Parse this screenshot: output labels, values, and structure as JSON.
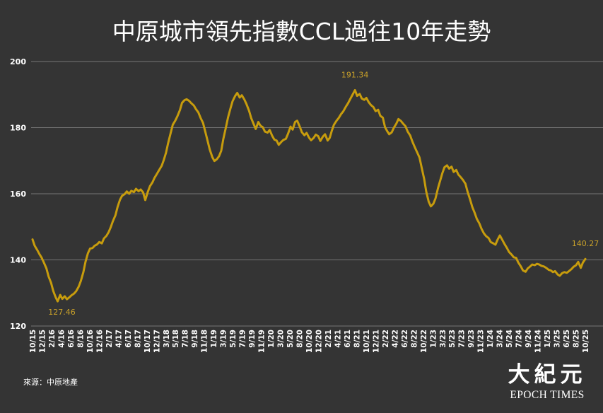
{
  "source": "來源：中原地產",
  "logo": {
    "chinese": "大紀元",
    "english": "EPOCH TIMES"
  },
  "colors": {
    "background": "#343434",
    "text": "#ffffff",
    "grid": "#767676",
    "line": "#c79c0d",
    "annotation": "#c9a12a"
  },
  "chart_data": {
    "type": "line",
    "title": "中原城市領先指數CCL過往10年走勢",
    "ylim": [
      120,
      200
    ],
    "yticks": [
      120,
      140,
      160,
      180,
      200
    ],
    "xlim": [
      "2015-10-01",
      "2025-10-01"
    ],
    "grid": true,
    "xtick_labels": [
      "10/15",
      "12/15",
      "2/16",
      "4/16",
      "6/16",
      "8/16",
      "10/16",
      "12/16",
      "2/17",
      "4/17",
      "6/17",
      "8/17",
      "10/17",
      "12/17",
      "3/18",
      "5/18",
      "7/18",
      "9/18",
      "11/18",
      "1/19",
      "3/19",
      "5/19",
      "7/19",
      "9/19",
      "11/19",
      "1/20",
      "3/20",
      "5/20",
      "8/20",
      "10/20",
      "12/20",
      "2/21",
      "4/21",
      "6/21",
      "8/21",
      "10/21",
      "12/21",
      "2/22",
      "4/22",
      "6/22",
      "8/22",
      "10/22",
      "1/23",
      "3/23",
      "5/23",
      "7/23",
      "9/23",
      "11/23",
      "1/24",
      "3/24",
      "5/24",
      "7/24",
      "9/24",
      "11/24",
      "1/25",
      "3/25",
      "6/25",
      "8/25",
      "10/25"
    ],
    "series": [
      {
        "points": [
          [
            "2015-10-01",
            146.2
          ],
          [
            "2015-10-15",
            144.3
          ],
          [
            "2015-11-01",
            143.0
          ],
          [
            "2015-11-15",
            141.8
          ],
          [
            "2015-12-01",
            140.6
          ],
          [
            "2015-12-15",
            139.2
          ],
          [
            "2016-01-01",
            137.4
          ],
          [
            "2016-01-15",
            135.0
          ],
          [
            "2016-02-01",
            133.0
          ],
          [
            "2016-02-15",
            130.6
          ],
          [
            "2016-03-01",
            128.8
          ],
          [
            "2016-03-15",
            127.46
          ],
          [
            "2016-04-01",
            129.4
          ],
          [
            "2016-04-15",
            128.2
          ],
          [
            "2016-05-01",
            129.0
          ],
          [
            "2016-05-15",
            128.1
          ],
          [
            "2016-06-01",
            128.7
          ],
          [
            "2016-06-15",
            129.3
          ],
          [
            "2016-07-01",
            129.8
          ],
          [
            "2016-07-15",
            130.5
          ],
          [
            "2016-08-01",
            131.9
          ],
          [
            "2016-08-15",
            133.6
          ],
          [
            "2016-09-01",
            136.3
          ],
          [
            "2016-09-15",
            139.4
          ],
          [
            "2016-10-01",
            142.0
          ],
          [
            "2016-10-15",
            143.4
          ],
          [
            "2016-11-01",
            143.6
          ],
          [
            "2016-11-15",
            144.3
          ],
          [
            "2016-12-01",
            144.7
          ],
          [
            "2016-12-15",
            145.4
          ],
          [
            "2017-01-01",
            145.0
          ],
          [
            "2017-01-15",
            146.5
          ],
          [
            "2017-02-01",
            147.3
          ],
          [
            "2017-02-15",
            148.4
          ],
          [
            "2017-03-01",
            149.9
          ],
          [
            "2017-03-15",
            151.7
          ],
          [
            "2017-04-01",
            153.5
          ],
          [
            "2017-04-15",
            156.0
          ],
          [
            "2017-05-01",
            158.2
          ],
          [
            "2017-05-15",
            159.4
          ],
          [
            "2017-06-01",
            159.9
          ],
          [
            "2017-06-15",
            160.7
          ],
          [
            "2017-07-01",
            160.0
          ],
          [
            "2017-07-15",
            160.9
          ],
          [
            "2017-08-01",
            160.5
          ],
          [
            "2017-08-15",
            161.5
          ],
          [
            "2017-09-01",
            160.8
          ],
          [
            "2017-09-15",
            161.3
          ],
          [
            "2017-10-01",
            160.4
          ],
          [
            "2017-10-15",
            158.1
          ],
          [
            "2017-11-01",
            160.6
          ],
          [
            "2017-11-15",
            162.3
          ],
          [
            "2017-12-01",
            163.4
          ],
          [
            "2017-12-15",
            164.8
          ],
          [
            "2018-01-01",
            166.1
          ],
          [
            "2018-01-15",
            167.2
          ],
          [
            "2018-02-01",
            168.5
          ],
          [
            "2018-02-15",
            170.3
          ],
          [
            "2018-03-01",
            172.4
          ],
          [
            "2018-03-15",
            175.3
          ],
          [
            "2018-04-01",
            178.4
          ],
          [
            "2018-04-15",
            180.9
          ],
          [
            "2018-05-01",
            182.1
          ],
          [
            "2018-05-15",
            183.4
          ],
          [
            "2018-06-01",
            185.3
          ],
          [
            "2018-06-15",
            187.5
          ],
          [
            "2018-07-01",
            188.3
          ],
          [
            "2018-07-15",
            188.6
          ],
          [
            "2018-08-01",
            188.1
          ],
          [
            "2018-08-15",
            187.4
          ],
          [
            "2018-09-01",
            186.7
          ],
          [
            "2018-09-15",
            185.6
          ],
          [
            "2018-10-01",
            184.6
          ],
          [
            "2018-10-15",
            183.0
          ],
          [
            "2018-11-01",
            181.4
          ],
          [
            "2018-11-15",
            178.9
          ],
          [
            "2018-12-01",
            176.0
          ],
          [
            "2018-12-15",
            173.4
          ],
          [
            "2019-01-01",
            171.1
          ],
          [
            "2019-01-15",
            169.9
          ],
          [
            "2019-02-01",
            170.5
          ],
          [
            "2019-02-15",
            171.4
          ],
          [
            "2019-03-01",
            173.0
          ],
          [
            "2019-03-15",
            176.6
          ],
          [
            "2019-04-01",
            180.1
          ],
          [
            "2019-04-15",
            183.1
          ],
          [
            "2019-05-01",
            185.8
          ],
          [
            "2019-05-15",
            188.0
          ],
          [
            "2019-06-01",
            189.6
          ],
          [
            "2019-06-15",
            190.5
          ],
          [
            "2019-07-01",
            189.1
          ],
          [
            "2019-07-15",
            189.8
          ],
          [
            "2019-08-01",
            188.5
          ],
          [
            "2019-08-15",
            187.1
          ],
          [
            "2019-09-01",
            185.1
          ],
          [
            "2019-09-15",
            182.9
          ],
          [
            "2019-10-01",
            181.1
          ],
          [
            "2019-10-15",
            179.6
          ],
          [
            "2019-11-01",
            181.7
          ],
          [
            "2019-11-15",
            180.6
          ],
          [
            "2019-12-01",
            180.1
          ],
          [
            "2019-12-15",
            178.8
          ],
          [
            "2020-01-01",
            178.5
          ],
          [
            "2020-01-15",
            179.3
          ],
          [
            "2020-02-01",
            177.5
          ],
          [
            "2020-02-15",
            176.4
          ],
          [
            "2020-03-01",
            176.1
          ],
          [
            "2020-03-15",
            174.8
          ],
          [
            "2020-04-01",
            175.7
          ],
          [
            "2020-04-15",
            176.3
          ],
          [
            "2020-05-01",
            176.6
          ],
          [
            "2020-05-15",
            178.1
          ],
          [
            "2020-06-01",
            180.3
          ],
          [
            "2020-06-15",
            179.4
          ],
          [
            "2020-07-01",
            181.7
          ],
          [
            "2020-07-15",
            182.1
          ],
          [
            "2020-08-01",
            180.3
          ],
          [
            "2020-08-15",
            178.6
          ],
          [
            "2020-09-01",
            177.7
          ],
          [
            "2020-09-15",
            178.4
          ],
          [
            "2020-10-01",
            177.0
          ],
          [
            "2020-10-15",
            176.2
          ],
          [
            "2020-11-01",
            176.9
          ],
          [
            "2020-11-15",
            177.9
          ],
          [
            "2020-12-01",
            177.4
          ],
          [
            "2020-12-15",
            176.0
          ],
          [
            "2021-01-01",
            177.3
          ],
          [
            "2021-01-15",
            178.0
          ],
          [
            "2021-02-01",
            176.1
          ],
          [
            "2021-02-15",
            176.9
          ],
          [
            "2021-03-01",
            179.1
          ],
          [
            "2021-03-15",
            180.9
          ],
          [
            "2021-04-01",
            182.1
          ],
          [
            "2021-04-15",
            182.9
          ],
          [
            "2021-05-01",
            184.1
          ],
          [
            "2021-05-15",
            184.9
          ],
          [
            "2021-06-01",
            186.3
          ],
          [
            "2021-06-15",
            187.3
          ],
          [
            "2021-07-01",
            188.7
          ],
          [
            "2021-07-15",
            189.9
          ],
          [
            "2021-08-01",
            191.34
          ],
          [
            "2021-08-15",
            189.6
          ],
          [
            "2021-09-01",
            190.2
          ],
          [
            "2021-09-15",
            188.8
          ],
          [
            "2021-10-01",
            188.4
          ],
          [
            "2021-10-15",
            189.0
          ],
          [
            "2021-11-01",
            187.6
          ],
          [
            "2021-11-15",
            186.8
          ],
          [
            "2021-12-01",
            186.2
          ],
          [
            "2021-12-15",
            185.0
          ],
          [
            "2022-01-01",
            185.4
          ],
          [
            "2022-01-15",
            183.6
          ],
          [
            "2022-02-01",
            183.0
          ],
          [
            "2022-02-15",
            180.2
          ],
          [
            "2022-03-01",
            179.0
          ],
          [
            "2022-03-15",
            178.0
          ],
          [
            "2022-04-01",
            178.6
          ],
          [
            "2022-04-15",
            180.0
          ],
          [
            "2022-05-01",
            181.2
          ],
          [
            "2022-05-15",
            182.6
          ],
          [
            "2022-06-01",
            182.0
          ],
          [
            "2022-06-15",
            181.2
          ],
          [
            "2022-07-01",
            180.4
          ],
          [
            "2022-07-15",
            178.8
          ],
          [
            "2022-08-01",
            177.6
          ],
          [
            "2022-08-15",
            175.8
          ],
          [
            "2022-09-01",
            174.0
          ],
          [
            "2022-09-15",
            172.6
          ],
          [
            "2022-10-01",
            171.0
          ],
          [
            "2022-10-15",
            168.0
          ],
          [
            "2022-11-01",
            164.5
          ],
          [
            "2022-11-15",
            160.6
          ],
          [
            "2022-12-01",
            157.6
          ],
          [
            "2022-12-15",
            156.2
          ],
          [
            "2023-01-01",
            157.0
          ],
          [
            "2023-01-15",
            158.6
          ],
          [
            "2023-02-01",
            161.8
          ],
          [
            "2023-02-15",
            164.0
          ],
          [
            "2023-03-01",
            166.2
          ],
          [
            "2023-03-15",
            168.0
          ],
          [
            "2023-04-01",
            168.6
          ],
          [
            "2023-04-15",
            167.6
          ],
          [
            "2023-05-01",
            168.2
          ],
          [
            "2023-05-15",
            166.6
          ],
          [
            "2023-06-01",
            167.2
          ],
          [
            "2023-06-15",
            165.8
          ],
          [
            "2023-07-01",
            165.0
          ],
          [
            "2023-07-15",
            164.2
          ],
          [
            "2023-08-01",
            163.0
          ],
          [
            "2023-08-15",
            160.6
          ],
          [
            "2023-09-01",
            158.2
          ],
          [
            "2023-09-15",
            156.0
          ],
          [
            "2023-10-01",
            154.2
          ],
          [
            "2023-10-15",
            152.4
          ],
          [
            "2023-11-01",
            151.0
          ],
          [
            "2023-11-15",
            149.4
          ],
          [
            "2023-12-01",
            148.0
          ],
          [
            "2023-12-15",
            147.2
          ],
          [
            "2024-01-01",
            146.6
          ],
          [
            "2024-01-15",
            145.4
          ],
          [
            "2024-02-01",
            145.0
          ],
          [
            "2024-02-15",
            144.6
          ],
          [
            "2024-03-01",
            146.2
          ],
          [
            "2024-03-15",
            147.4
          ],
          [
            "2024-04-01",
            146.0
          ],
          [
            "2024-04-15",
            144.8
          ],
          [
            "2024-05-01",
            143.6
          ],
          [
            "2024-05-15",
            142.4
          ],
          [
            "2024-06-01",
            141.6
          ],
          [
            "2024-06-15",
            140.8
          ],
          [
            "2024-07-01",
            140.6
          ],
          [
            "2024-07-15",
            139.2
          ],
          [
            "2024-08-01",
            138.0
          ],
          [
            "2024-08-15",
            136.8
          ],
          [
            "2024-09-01",
            136.4
          ],
          [
            "2024-09-15",
            137.4
          ],
          [
            "2024-10-01",
            138.0
          ],
          [
            "2024-10-15",
            138.6
          ],
          [
            "2024-11-01",
            138.4
          ],
          [
            "2024-11-15",
            138.8
          ],
          [
            "2024-12-01",
            138.6
          ],
          [
            "2024-12-15",
            138.2
          ],
          [
            "2025-01-01",
            138.0
          ],
          [
            "2025-01-15",
            137.6
          ],
          [
            "2025-02-01",
            137.0
          ],
          [
            "2025-02-15",
            136.8
          ],
          [
            "2025-03-01",
            136.3
          ],
          [
            "2025-03-15",
            136.6
          ],
          [
            "2025-04-01",
            135.6
          ],
          [
            "2025-04-15",
            135.2
          ],
          [
            "2025-05-01",
            136.0
          ],
          [
            "2025-05-15",
            136.3
          ],
          [
            "2025-06-01",
            136.1
          ],
          [
            "2025-06-15",
            136.6
          ],
          [
            "2025-07-01",
            137.2
          ],
          [
            "2025-07-15",
            137.9
          ],
          [
            "2025-08-01",
            138.4
          ],
          [
            "2025-08-15",
            139.4
          ],
          [
            "2025-09-01",
            137.6
          ],
          [
            "2025-09-15",
            139.2
          ],
          [
            "2025-10-01",
            140.27
          ]
        ]
      }
    ],
    "annotations": [
      {
        "x": "2016-03-15",
        "y": 127.46,
        "label": "127.46"
      },
      {
        "x": "2021-08-01",
        "y": 191.34,
        "label": "191.34"
      },
      {
        "x": "2025-10-01",
        "y": 140.27,
        "label": "140.27"
      }
    ]
  }
}
